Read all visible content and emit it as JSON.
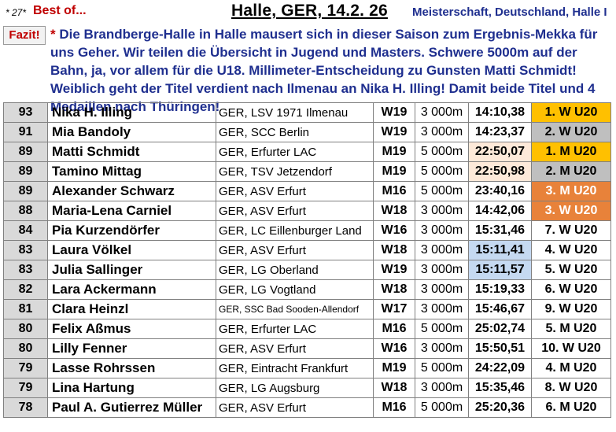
{
  "header": {
    "number": "* 27*",
    "best_of": "Best of...",
    "event": "Halle, GER, 14.2. 26",
    "championship": "Meisterschaft, Deutschland, Halle I"
  },
  "summary": {
    "label": "Fazit!",
    "star": "*",
    "text": "Die Brandberge-Halle in Halle mausert sich in dieser Saison zum Ergebnis-Mekka für uns Geher. Wir teilen die Übersicht in Jugend und Masters. Schwere 5000m auf der Bahn, ja, vor allem für die U18. Millimeter-Entscheidung zu Gunsten Matti Schmidt! Weiblich geht der Titel verdient nach Ilmenau an Nika H. Illing! Damit beide Titel und 4 Medaillen nach Thüringen!"
  },
  "colors": {
    "title_blue": "#1f2f8f",
    "accent_red": "#c00000",
    "gold": "#ffc000",
    "silver": "#bfbfbf",
    "bronze": "#e8823a",
    "time_peach": "#fde9d9",
    "time_blue": "#c5d9f1"
  },
  "results": [
    {
      "points": "93",
      "name": "Nika H. Illing",
      "club": "GER, LSV 1971 Ilmenau",
      "class": "W19",
      "distance": "3 000m",
      "time": "14:10,38",
      "rank": "1. W U20",
      "time_hl": "",
      "medal": "gold"
    },
    {
      "points": "91",
      "name": "Mia Bandoly",
      "club": "GER, SCC Berlin",
      "class": "W19",
      "distance": "3 000m",
      "time": "14:23,37",
      "rank": "2. W U20",
      "time_hl": "",
      "medal": "silver"
    },
    {
      "points": "89",
      "name": "Matti Schmidt",
      "club": "GER, Erfurter LAC",
      "class": "M19",
      "distance": "5 000m",
      "time": "22:50,07",
      "rank": "1. M U20",
      "time_hl": "peach",
      "medal": "gold"
    },
    {
      "points": "89",
      "name": "Tamino Mittag",
      "club": "GER, TSV Jetzendorf",
      "class": "M19",
      "distance": "5 000m",
      "time": "22:50,98",
      "rank": "2. M U20",
      "time_hl": "peach",
      "medal": "silver"
    },
    {
      "points": "89",
      "name": "Alexander Schwarz",
      "club": "GER, ASV Erfurt",
      "class": "M16",
      "distance": "5 000m",
      "time": "23:40,16",
      "rank": "3. M U20",
      "time_hl": "",
      "medal": "bronze"
    },
    {
      "points": "88",
      "name": "Maria-Lena Carniel",
      "club": "GER, ASV Erfurt",
      "class": "W18",
      "distance": "3 000m",
      "time": "14:42,06",
      "rank": "3. W U20",
      "time_hl": "",
      "medal": "bronze"
    },
    {
      "points": "84",
      "name": "Pia Kurzendörfer",
      "club": "GER, LC Eillenburger Land",
      "class": "W16",
      "distance": "3 000m",
      "time": "15:31,46",
      "rank": "7. W U20",
      "time_hl": "",
      "medal": ""
    },
    {
      "points": "83",
      "name": "Laura Völkel",
      "club": "GER, ASV Erfurt",
      "class": "W18",
      "distance": "3 000m",
      "time": "15:11,41",
      "rank": "4. W U20",
      "time_hl": "blue",
      "medal": ""
    },
    {
      "points": "83",
      "name": "Julia Sallinger",
      "club": "GER, LG Oberland",
      "class": "W19",
      "distance": "3 000m",
      "time": "15:11,57",
      "rank": "5. W U20",
      "time_hl": "blue",
      "medal": ""
    },
    {
      "points": "82",
      "name": "Lara Ackermann",
      "club": "GER, LG Vogtland",
      "class": "W18",
      "distance": "3 000m",
      "time": "15:19,33",
      "rank": "6. W U20",
      "time_hl": "",
      "medal": ""
    },
    {
      "points": "81",
      "name": "Clara Heinzl",
      "club": "GER, SSC Bad Sooden-Allendorf",
      "class": "W17",
      "distance": "3 000m",
      "time": "15:46,67",
      "rank": "9. W U20",
      "time_hl": "",
      "medal": "",
      "club_small": true
    },
    {
      "points": "80",
      "name": "Felix Aßmus",
      "club": "GER, Erfurter LAC",
      "class": "M16",
      "distance": "5 000m",
      "time": "25:02,74",
      "rank": "5. M U20",
      "time_hl": "",
      "medal": ""
    },
    {
      "points": "80",
      "name": "Lilly Fenner",
      "club": "GER, ASV Erfurt",
      "class": "W16",
      "distance": "3 000m",
      "time": "15:50,51",
      "rank": "10. W U20",
      "time_hl": "",
      "medal": ""
    },
    {
      "points": "79",
      "name": "Lasse Rohrssen",
      "club": "GER, Eintracht Frankfurt",
      "class": "M19",
      "distance": "5 000m",
      "time": "24:22,09",
      "rank": "4. M U20",
      "time_hl": "",
      "medal": ""
    },
    {
      "points": "79",
      "name": "Lina Hartung",
      "club": "GER, LG Augsburg",
      "class": "W18",
      "distance": "3 000m",
      "time": "15:35,46",
      "rank": "8. W U20",
      "time_hl": "",
      "medal": ""
    },
    {
      "points": "78",
      "name": "Paul A. Gutierrez Müller",
      "club": "GER, ASV Erfurt",
      "class": "M16",
      "distance": "5 000m",
      "time": "25:20,36",
      "rank": "6. M U20",
      "time_hl": "",
      "medal": ""
    }
  ]
}
